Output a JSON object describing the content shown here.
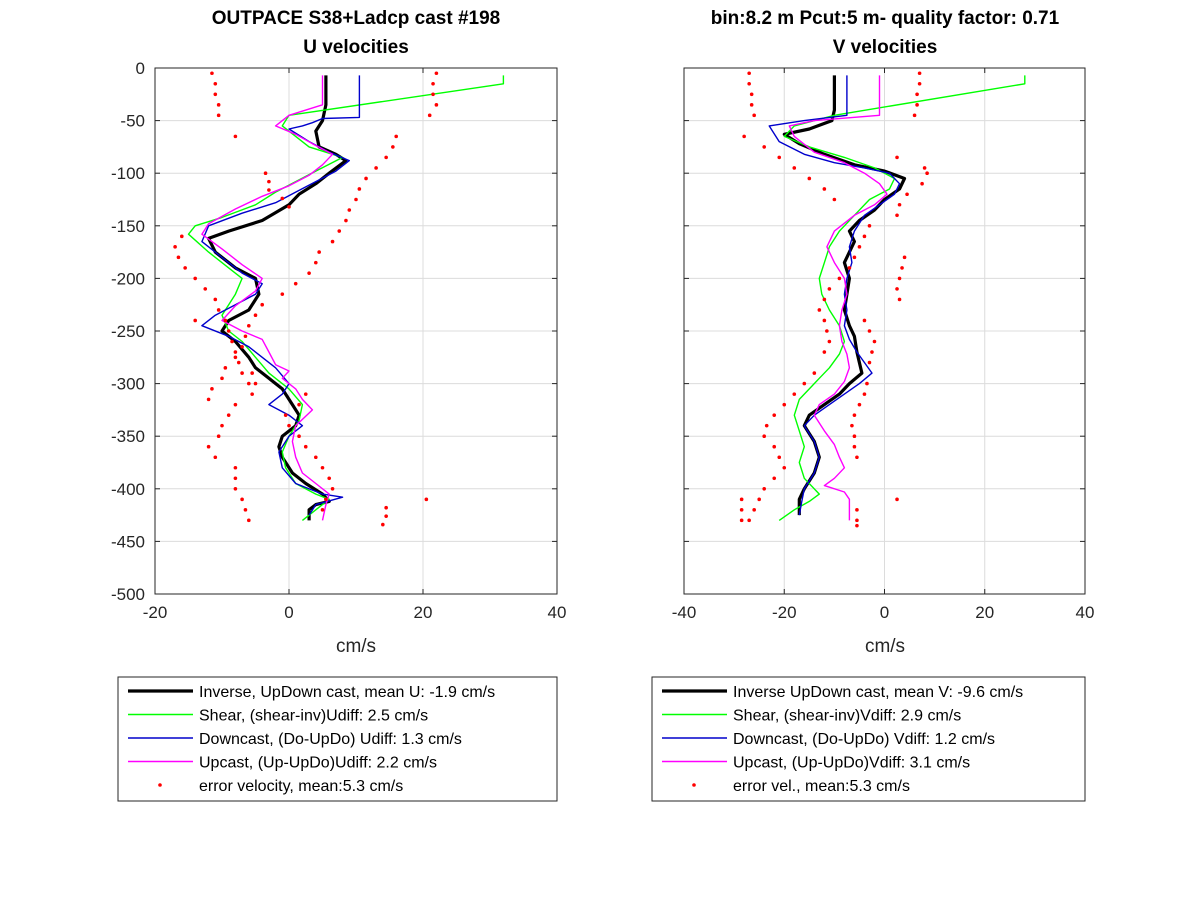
{
  "chart_data": [
    {
      "type": "line",
      "title": "OUTPACE S38+Ladcp cast #198",
      "subtitle": "U velocities",
      "xlabel": "cm/s",
      "ylabel": "",
      "xlim": [
        -20,
        40
      ],
      "ylim": [
        -500,
        0
      ],
      "xticks": [
        -20,
        0,
        20,
        40
      ],
      "yticks": [
        0,
        -50,
        -100,
        -150,
        -200,
        -250,
        -300,
        -350,
        -400,
        -450,
        -500
      ],
      "grid": true,
      "legend_position": "below",
      "series": [
        {
          "name": "Inverse, UpDown cast, mean U:  -1.9 cm/s",
          "color": "#000000",
          "width": 3.2,
          "x": [
            5.5,
            5.5,
            5.0,
            4.0,
            4.5,
            7.0,
            8.5,
            6.0,
            4.0,
            1.5,
            0.0,
            -4.0,
            -9.0,
            -12.0,
            -11.0,
            -8.0,
            -5.0,
            -4.5,
            -6.0,
            -9.0,
            -10.0,
            -8.0,
            -6.0,
            -5.0,
            -3.0,
            -1.0,
            0.5,
            1.5,
            1.0,
            -1.0,
            -1.5,
            -1.0,
            0.5,
            2.5,
            5.0,
            6.0,
            4.0,
            3.0,
            3.0
          ],
          "y": [
            -7,
            -35,
            -50,
            -60,
            -75,
            -82,
            -88,
            -100,
            -110,
            -120,
            -130,
            -145,
            -155,
            -162,
            -175,
            -190,
            -200,
            -215,
            -230,
            -240,
            -250,
            -260,
            -275,
            -285,
            -295,
            -305,
            -320,
            -330,
            -340,
            -350,
            -360,
            -370,
            -385,
            -395,
            -405,
            -412,
            -415,
            -420,
            -430
          ]
        },
        {
          "name": "Shear, (shear-inv)Udiff:  2.5 cm/s",
          "color": "#00ff00",
          "width": 1.4,
          "x": [
            32.0,
            32.0,
            0.0,
            -1.0,
            1.0,
            3.0,
            8.0,
            4.0,
            1.0,
            -2.0,
            -5.0,
            -10.0,
            -14.0,
            -15.0,
            -12.0,
            -9.0,
            -7.0,
            -8.0,
            -10.0,
            -9.0,
            -7.0,
            -5.0,
            -3.0,
            0.0,
            2.0,
            1.5,
            0.0,
            -1.0,
            -0.5,
            1.0,
            4.0,
            6.0,
            4.0,
            2.0
          ],
          "y": [
            -7,
            -15,
            -45,
            -55,
            -65,
            -75,
            -85,
            -98,
            -108,
            -118,
            -130,
            -142,
            -150,
            -158,
            -175,
            -190,
            -200,
            -215,
            -235,
            -250,
            -260,
            -275,
            -290,
            -305,
            -320,
            -335,
            -350,
            -365,
            -380,
            -395,
            -405,
            -410,
            -420,
            -430
          ]
        },
        {
          "name": "Downcast, (Do-UpDo) Udiff:  1.3 cm/s",
          "color": "#0000cc",
          "width": 1.4,
          "x": [
            10.5,
            10.5,
            5.0,
            3.5,
            2.0,
            0.0,
            3.0,
            6.0,
            9.0,
            7.0,
            4.0,
            1.0,
            -2.0,
            -7.0,
            -12.0,
            -13.0,
            -10.0,
            -7.0,
            -4.0,
            -5.0,
            -8.0,
            -11.0,
            -13.0,
            -9.0,
            -6.0,
            -4.0,
            -2.0,
            0.0,
            -1.0,
            -3.0,
            0.0,
            2.0,
            0.0,
            -1.5,
            -1.0,
            1.0,
            5.0,
            8.0,
            4.0,
            3.0
          ],
          "y": [
            -7,
            -47,
            -48,
            -52,
            -55,
            -58,
            -70,
            -80,
            -88,
            -98,
            -108,
            -118,
            -128,
            -138,
            -150,
            -165,
            -180,
            -195,
            -205,
            -215,
            -225,
            -235,
            -245,
            -255,
            -265,
            -275,
            -285,
            -300,
            -310,
            -320,
            -330,
            -340,
            -350,
            -365,
            -380,
            -395,
            -405,
            -408,
            -415,
            -425
          ]
        },
        {
          "name": "Upcast, (Up-UpDo)Udiff:  2.2 cm/s",
          "color": "#ff00ff",
          "width": 1.4,
          "x": [
            5.0,
            5.0,
            0.0,
            -2.0,
            1.0,
            3.5,
            6.5,
            5.0,
            3.0,
            0.0,
            -4.0,
            -8.0,
            -12.0,
            -13.0,
            -10.0,
            -7.0,
            -4.0,
            -5.0,
            -8.0,
            -10.0,
            -7.0,
            -4.0,
            -3.0,
            -2.0,
            0.0,
            -1.0,
            1.0,
            2.0,
            3.5,
            1.0,
            0.5,
            1.0,
            2.0,
            4.0,
            6.0,
            5.5,
            5.0
          ],
          "y": [
            -7,
            -35,
            -45,
            -55,
            -63,
            -72,
            -82,
            -92,
            -102,
            -112,
            -122,
            -134,
            -148,
            -158,
            -172,
            -187,
            -200,
            -212,
            -226,
            -240,
            -250,
            -258,
            -270,
            -282,
            -288,
            -295,
            -305,
            -315,
            -325,
            -340,
            -355,
            -370,
            -385,
            -395,
            -405,
            -415,
            -430
          ]
        },
        {
          "name": "error velocity, mean:5.3 cm/s",
          "color": "#ff0000",
          "marker": "dot",
          "x": [
            -11.5,
            -11.0,
            -11.0,
            -10.5,
            -10.5,
            -8.0,
            -3.5,
            -3.0,
            -3.0,
            -1.0,
            0.0,
            22.0,
            21.5,
            21.5,
            22.0,
            21.0,
            16.0,
            15.5,
            14.5,
            13.0,
            11.5,
            10.5,
            10.0,
            9.0,
            8.5,
            7.5,
            6.5,
            4.5,
            4.0,
            3.0,
            1.0,
            -1.0,
            -4.0,
            -5.0,
            -6.0,
            -6.5,
            -7.0,
            -8.0,
            -9.5,
            -10.0,
            -11.5,
            -12.0,
            -14.0,
            -16.0,
            -17.0,
            -16.5,
            -15.5,
            -14.0,
            -12.5,
            -11.0,
            -10.5,
            -9.5,
            -9.0,
            -8.5,
            -8.0,
            -7.5,
            -7.0,
            -6.0,
            -5.5,
            -8.0,
            -9.0,
            -10.0,
            -10.5,
            -12.0,
            -11.0,
            -8.0,
            -8.0,
            -8.0,
            -7.0,
            -6.5,
            -6.0,
            -5.5,
            -5.0,
            2.5,
            1.5,
            -0.5,
            0.0,
            1.5,
            2.5,
            4.0,
            5.0,
            6.0,
            6.5,
            5.5,
            5.0,
            20.5,
            14.5,
            14.5,
            14.0
          ],
          "y": [
            -5,
            -15,
            -25,
            -35,
            -45,
            -65,
            -100,
            -108,
            -116,
            -124,
            -132,
            -5,
            -15,
            -25,
            -35,
            -45,
            -65,
            -75,
            -85,
            -95,
            -105,
            -115,
            -125,
            -135,
            -145,
            -155,
            -165,
            -175,
            -185,
            -195,
            -205,
            -215,
            -225,
            -235,
            -245,
            -255,
            -265,
            -275,
            -285,
            -295,
            -305,
            -315,
            -240,
            -160,
            -170,
            -180,
            -190,
            -200,
            -210,
            -220,
            -230,
            -240,
            -250,
            -260,
            -270,
            -280,
            -290,
            -300,
            -310,
            -320,
            -330,
            -340,
            -350,
            -360,
            -370,
            -380,
            -390,
            -400,
            -410,
            -420,
            -430,
            -290,
            -300,
            -310,
            -320,
            -330,
            -340,
            -350,
            -360,
            -370,
            -380,
            -390,
            -400,
            -410,
            -420,
            -410,
            -418,
            -426,
            -434
          ]
        }
      ]
    },
    {
      "type": "line",
      "title": "bin:8.2 m  Pcut:5 m- quality factor:  0.71",
      "subtitle": "V velocities",
      "xlabel": "cm/s",
      "ylabel": "",
      "xlim": [
        -40,
        40
      ],
      "ylim": [
        -500,
        0
      ],
      "xticks": [
        -40,
        -20,
        0,
        20,
        40
      ],
      "yticks": [
        0,
        -50,
        -100,
        -150,
        -200,
        -250,
        -300,
        -350,
        -400,
        -450,
        -500
      ],
      "grid": true,
      "legend_position": "below",
      "series": [
        {
          "name": "Inverse UpDown cast, mean V:  -9.6 cm/s",
          "color": "#000000",
          "width": 3.2,
          "x": [
            -10.0,
            -10.0,
            -10.5,
            -15.0,
            -20.0,
            -17.0,
            -12.0,
            -6.0,
            0.0,
            4.0,
            3.0,
            0.0,
            -2.0,
            -5.0,
            -7.0,
            -6.0,
            -7.0,
            -8.0,
            -7.0,
            -7.5,
            -8.0,
            -7.0,
            -6.0,
            -5.5,
            -5.0,
            -4.5,
            -7.0,
            -9.0,
            -12.0,
            -15.0,
            -16.0,
            -14.0,
            -13.0,
            -14.0,
            -16.0,
            -17.0,
            -17.0
          ],
          "y": [
            -7,
            -40,
            -50,
            -58,
            -63,
            -72,
            -82,
            -92,
            -98,
            -105,
            -115,
            -125,
            -135,
            -145,
            -155,
            -165,
            -175,
            -185,
            -200,
            -215,
            -230,
            -245,
            -255,
            -270,
            -280,
            -290,
            -300,
            -310,
            -320,
            -330,
            -340,
            -355,
            -370,
            -385,
            -400,
            -410,
            -425
          ]
        },
        {
          "name": "Shear, (shear-inv)Vdiff:  2.9 cm/s",
          "color": "#00ff00",
          "width": 1.4,
          "x": [
            28.0,
            28.0,
            -10.0,
            -18.0,
            -20.0,
            -15.0,
            -8.0,
            -2.0,
            2.0,
            1.0,
            -3.0,
            -6.0,
            -9.0,
            -11.0,
            -12.0,
            -13.0,
            -12.5,
            -11.0,
            -9.0,
            -8.0,
            -9.0,
            -11.0,
            -13.0,
            -15.0,
            -17.0,
            -18.0,
            -17.0,
            -16.0,
            -17.0,
            -16.0,
            -13.0,
            -15.0,
            -18.0,
            -21.0
          ],
          "y": [
            -7,
            -15,
            -45,
            -55,
            -65,
            -75,
            -85,
            -95,
            -105,
            -115,
            -125,
            -140,
            -155,
            -170,
            -185,
            -200,
            -215,
            -230,
            -245,
            -260,
            -272,
            -285,
            -295,
            -305,
            -315,
            -330,
            -345,
            -360,
            -375,
            -390,
            -405,
            -412,
            -420,
            -430
          ]
        },
        {
          "name": "Downcast, (Do-UpDo) Vdiff:  1.2 cm/s",
          "color": "#0000cc",
          "width": 1.4,
          "x": [
            -7.5,
            -7.5,
            -16.0,
            -23.0,
            -21.0,
            -16.0,
            -10.0,
            -4.0,
            1.0,
            3.0,
            2.0,
            -1.0,
            -4.0,
            -6.0,
            -7.0,
            -6.5,
            -7.5,
            -8.0,
            -7.5,
            -8.0,
            -7.0,
            -5.5,
            -4.0,
            -2.5,
            -5.0,
            -8.0,
            -11.0,
            -14.0,
            -16.0,
            -14.0,
            -13.0,
            -14.0,
            -16.0,
            -16.5,
            -17.0
          ],
          "y": [
            -7,
            -45,
            -50,
            -55,
            -70,
            -82,
            -90,
            -95,
            -100,
            -110,
            -120,
            -130,
            -140,
            -155,
            -170,
            -185,
            -200,
            -215,
            -230,
            -245,
            -258,
            -270,
            -280,
            -290,
            -300,
            -310,
            -320,
            -330,
            -340,
            -355,
            -370,
            -385,
            -400,
            -412,
            -425
          ]
        },
        {
          "name": "Upcast, (Up-UpDo)Vdiff:  3.1 cm/s",
          "color": "#ff00ff",
          "width": 1.4,
          "x": [
            -1.0,
            -1.0,
            -14.0,
            -19.0,
            -18.0,
            -14.0,
            -8.0,
            -4.0,
            -1.0,
            0.5,
            -2.0,
            -6.0,
            -10.0,
            -11.5,
            -10.0,
            -8.0,
            -7.5,
            -8.5,
            -9.0,
            -8.5,
            -7.5,
            -7.0,
            -8.0,
            -10.0,
            -13.0,
            -14.0,
            -12.0,
            -10.0,
            -9.0,
            -8.0,
            -10.0,
            -12.0,
            -8.0,
            -7.0,
            -7.0
          ],
          "y": [
            -7,
            -45,
            -50,
            -55,
            -65,
            -80,
            -90,
            -100,
            -110,
            -120,
            -130,
            -140,
            -155,
            -170,
            -185,
            -200,
            -215,
            -230,
            -245,
            -260,
            -272,
            -285,
            -298,
            -310,
            -320,
            -330,
            -345,
            -358,
            -370,
            -380,
            -390,
            -397,
            -403,
            -410,
            -430
          ]
        },
        {
          "name": "error vel., mean:5.3 cm/s",
          "color": "#ff0000",
          "marker": "dot",
          "x": [
            -27.0,
            -27.0,
            -26.5,
            -26.5,
            -26.0,
            -28.0,
            -24.0,
            -21.0,
            -18.0,
            -15.0,
            -12.0,
            -10.0,
            2.5,
            7.0,
            7.0,
            6.5,
            6.5,
            6.0,
            8.0,
            8.5,
            7.5,
            4.5,
            3.0,
            2.5,
            -3.0,
            -4.0,
            -5.0,
            -6.0,
            -7.0,
            -9.0,
            -11.0,
            -12.0,
            -13.0,
            -12.0,
            -11.5,
            -11.0,
            -12.0,
            -14.0,
            -16.0,
            -18.0,
            -20.0,
            -22.0,
            -23.5,
            -24.0,
            -22.0,
            -21.0,
            -20.0,
            -22.0,
            -24.0,
            -25.0,
            -26.0,
            -27.0,
            -28.5,
            -28.5,
            -28.5,
            4.0,
            3.5,
            3.0,
            2.5,
            3.0,
            -4.0,
            -3.0,
            -2.0,
            -2.5,
            -3.0,
            -3.5,
            -4.0,
            -5.0,
            -6.0,
            -6.5,
            -6.0,
            -6.0,
            -5.5,
            2.5,
            -5.5,
            -5.5,
            -5.5
          ],
          "y": [
            -5,
            -15,
            -25,
            -35,
            -45,
            -65,
            -75,
            -85,
            -95,
            -105,
            -115,
            -125,
            -85,
            -5,
            -15,
            -25,
            -35,
            -45,
            -95,
            -100,
            -110,
            -120,
            -130,
            -140,
            -150,
            -160,
            -170,
            -180,
            -190,
            -200,
            -210,
            -220,
            -230,
            -240,
            -250,
            -260,
            -270,
            -290,
            -300,
            -310,
            -320,
            -330,
            -340,
            -350,
            -360,
            -370,
            -380,
            -390,
            -400,
            -410,
            -420,
            -430,
            -410,
            -420,
            -430,
            -180,
            -190,
            -200,
            -210,
            -220,
            -240,
            -250,
            -260,
            -270,
            -280,
            -300,
            -310,
            -320,
            -330,
            -340,
            -350,
            -360,
            -370,
            -410,
            -420,
            -430,
            -435
          ]
        }
      ]
    }
  ]
}
